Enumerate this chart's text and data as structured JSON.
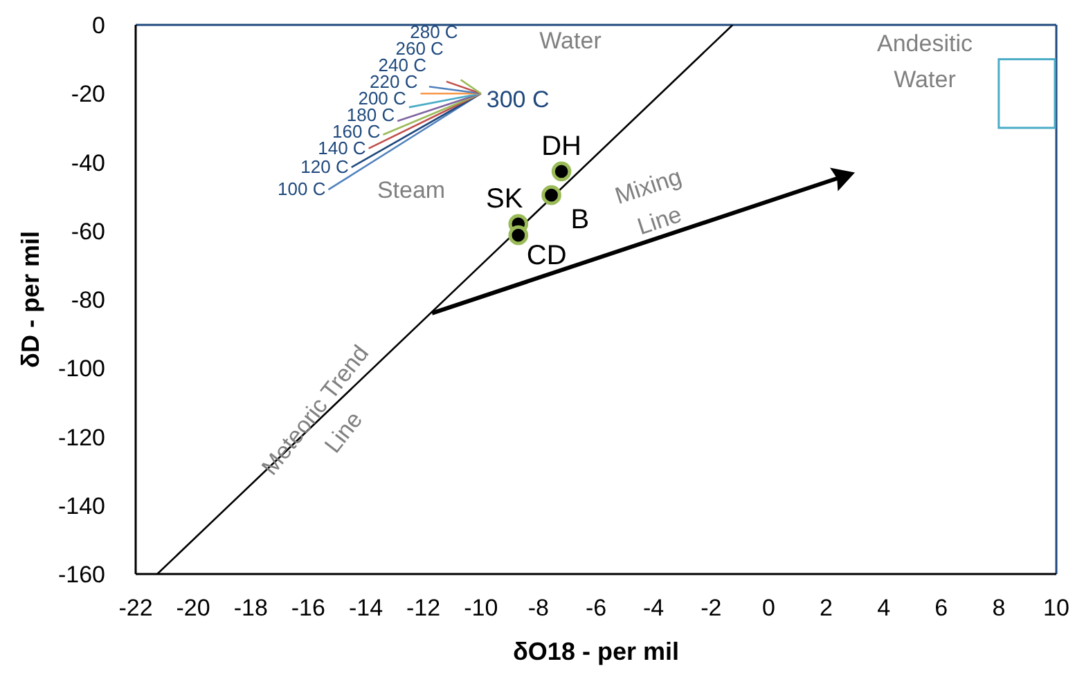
{
  "chart_data": {
    "type": "line",
    "xlabel": "δO18 - per mil",
    "ylabel": "δD - per mil",
    "xlim": [
      -22,
      10
    ],
    "ylim": [
      -160,
      0
    ],
    "xticks": [
      -22,
      -20,
      -18,
      -16,
      -14,
      -12,
      -10,
      -8,
      -6,
      -4,
      -2,
      0,
      2,
      4,
      6,
      8,
      10
    ],
    "yticks": [
      -160,
      -140,
      -120,
      -100,
      -80,
      -60,
      -40,
      -20,
      0
    ],
    "grid": false,
    "series": [
      {
        "color": "#000000",
        "x": [
          -21.25,
          -1.25
        ],
        "values": [
          -160,
          0
        ]
      },
      {
        "name": "100 C",
        "color": "#4f81bd",
        "x": [
          -15.3,
          -10
        ],
        "values": [
          -48,
          -20
        ]
      },
      {
        "name": "120 C",
        "color": "#1f497d",
        "x": [
          -14.5,
          -10
        ],
        "values": [
          -41.5,
          -20
        ]
      },
      {
        "name": "140 C",
        "color": "#c0504d",
        "x": [
          -13.9,
          -10
        ],
        "values": [
          -36,
          -20
        ]
      },
      {
        "name": "160 C",
        "color": "#9bbb59",
        "x": [
          -13.4,
          -10
        ],
        "values": [
          -32,
          -20
        ]
      },
      {
        "name": "180 C",
        "color": "#8064a2",
        "x": [
          -12.9,
          -10
        ],
        "values": [
          -28,
          -20
        ]
      },
      {
        "name": "200 C",
        "color": "#4bacc6",
        "x": [
          -12.5,
          -10
        ],
        "values": [
          -24,
          -20
        ]
      },
      {
        "name": "220 C",
        "color": "#f79646",
        "x": [
          -12.1,
          -10
        ],
        "values": [
          -20,
          -20
        ]
      },
      {
        "name": "240 C",
        "color": "#4f81bd",
        "x": [
          -11.8,
          -10
        ],
        "values": [
          -18,
          -20
        ]
      },
      {
        "name": "260 C",
        "color": "#c0504d",
        "x": [
          -11.2,
          -10
        ],
        "values": [
          -16.5,
          -20
        ]
      },
      {
        "name": "280 C",
        "color": "#9bbb59",
        "x": [
          -10.7,
          -10
        ],
        "values": [
          -16,
          -20
        ]
      },
      {
        "type": "scatter",
        "color": "#000000",
        "marker": "circle",
        "x": [
          -7.2,
          -7.55,
          -8.7,
          -8.7
        ],
        "values": [
          -42.7,
          -49.6,
          -58,
          -61.3
        ]
      }
    ],
    "annotations": [
      {
        "text": "DH",
        "x": -7.2,
        "y": -42.7
      },
      {
        "text": "B",
        "x": -7.55,
        "y": -49.6
      },
      {
        "text": "SK",
        "x": -8.7,
        "y": -58
      },
      {
        "text": "CD",
        "x": -8.7,
        "y": -61.3
      },
      {
        "text": "300 C",
        "x": -10,
        "y": -20
      },
      "Steam",
      "Water",
      "Andesitic\nWater",
      "Meteoric Trend\nLine",
      "Mixing\nLine"
    ]
  }
}
